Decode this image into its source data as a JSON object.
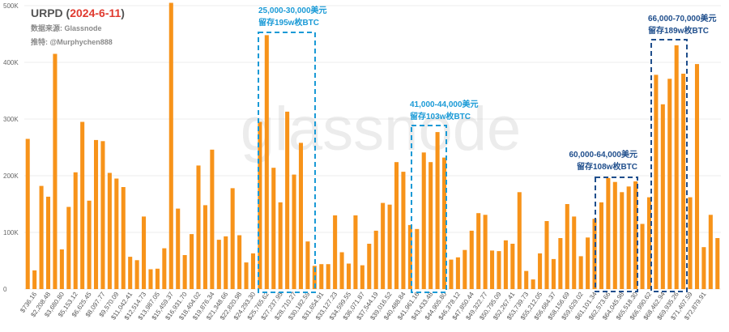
{
  "header": {
    "title_prefix": "URPD (",
    "date": "2024-6-11",
    "title_suffix": ")",
    "source_label": "数据来源: ",
    "source": "Glassnode",
    "author_label": "推特: ",
    "author": "@Murphychen888"
  },
  "watermark": "glassnode",
  "annotations": [
    {
      "range": "25,000-30,000美元",
      "supply": "留存195w枚BTC",
      "color": "#1a9ad6"
    },
    {
      "range": "41,000-44,000美元",
      "supply": "留存103w枚BTC",
      "color": "#1a9ad6"
    },
    {
      "range": "60,000-64,000美元",
      "supply": "留存108w枚BTC",
      "color": "#1f4e8c"
    },
    {
      "range": "66,000-70,000美元",
      "supply": "留存189w枚BTC",
      "color": "#1f4e8c"
    }
  ],
  "chart_data": {
    "type": "bar",
    "title": "URPD (2024-6-11)",
    "bar_color": "#f7931a",
    "ylim": [
      0,
      500000
    ],
    "y_ticks": [
      0,
      100000,
      200000,
      300000,
      400000,
      500000
    ],
    "y_tick_labels": [
      "0",
      "100K",
      "200K",
      "300K",
      "400K",
      "500K"
    ],
    "x_tick_labels": [
      "$736.16",
      "$2,208.48",
      "$3,680.80",
      "$5,153.12",
      "$6,625.45",
      "$8,097.77",
      "$9,570.09",
      "$11,042.41",
      "$12,514.73",
      "$13,987.05",
      "$15,459.37",
      "$16,931.70",
      "$18,404.02",
      "$19,876.34",
      "$21,348.66",
      "$22,820.98",
      "$24,293.30",
      "$25,765.62",
      "$27,237.95",
      "$28,710.27",
      "$30,182.59",
      "$31,654.91",
      "$33,127.23",
      "$34,599.55",
      "$36,071.87",
      "$37,544.19",
      "$39,016.52",
      "$40,488.84",
      "$41,961.16",
      "$43,433.48",
      "$44,905.80",
      "$46,378.12",
      "$47,850.44",
      "$49,322.77",
      "$50,795.09",
      "$52,267.41",
      "$53,739.73",
      "$55,212.05",
      "$56,684.37",
      "$58,156.69",
      "$59,629.02",
      "$61,101.34",
      "$62,573.66",
      "$64,045.98",
      "$65,518.30",
      "$66,990.62",
      "$68,462.94",
      "$69,935.26",
      "$71,407.59",
      "$72,879.91"
    ],
    "values": [
      265000,
      33000,
      182000,
      163000,
      415000,
      70000,
      145000,
      206000,
      295000,
      156000,
      263000,
      261000,
      205000,
      195000,
      180000,
      57000,
      51000,
      128000,
      35000,
      36000,
      72000,
      505000,
      142000,
      60000,
      97000,
      218000,
      148000,
      246000,
      87000,
      93000,
      178000,
      95000,
      47000,
      63000,
      295000,
      448000,
      214000,
      153000,
      313000,
      202000,
      258000,
      84000,
      41000,
      44000,
      44000,
      130000,
      65000,
      45000,
      130000,
      42000,
      80000,
      103000,
      152000,
      149000,
      224000,
      207000,
      113000,
      106000,
      241000,
      224000,
      277000,
      232000,
      52000,
      56000,
      69000,
      103000,
      134000,
      131000,
      68000,
      67000,
      86000,
      80000,
      171000,
      32000,
      17000,
      63000,
      120000,
      53000,
      90000,
      150000,
      128000,
      58000,
      91000,
      124000,
      153000,
      196000,
      189000,
      171000,
      181000,
      190000,
      115000,
      162000,
      378000,
      326000,
      371000,
      430000,
      380000,
      162000,
      397000,
      74000,
      131000,
      90000
    ],
    "highlight_boxes": [
      {
        "x_range": [
          25000,
          30000
        ],
        "label": "25,000-30,000美元",
        "note": "留存195w枚BTC"
      },
      {
        "x_range": [
          41000,
          44000
        ],
        "label": "41,000-44,000美元",
        "note": "留存103w枚BTC"
      },
      {
        "x_range": [
          60000,
          64000
        ],
        "label": "60,000-64,000美元",
        "note": "留存108w枚BTC"
      },
      {
        "x_range": [
          66000,
          70000
        ],
        "label": "66,000-70,000美元",
        "note": "留存189w枚BTC"
      }
    ]
  }
}
